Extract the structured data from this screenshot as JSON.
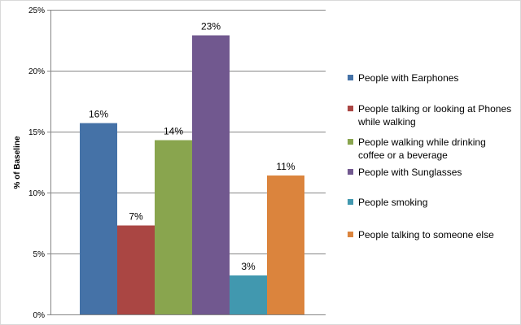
{
  "chart_data": {
    "type": "bar",
    "title": "",
    "xlabel": "",
    "ylabel": "% of Baseline",
    "ylim": [
      0,
      25
    ],
    "yticks": [
      0,
      5,
      10,
      15,
      20,
      25
    ],
    "ytick_suffix": "%",
    "grid": "horizontal",
    "legend_position": "right",
    "categories": [
      "People with Earphones",
      "People talking or looking at Phones while walking",
      "People walking while drinking coffee or a beverage",
      "People with Sunglasses",
      "People smoking",
      "People talking to someone else"
    ],
    "legend_lines": [
      [
        "People with Earphones"
      ],
      [
        "People talking or looking at Phones",
        "while walking"
      ],
      [
        "People walking while drinking",
        "coffee or a beverage"
      ],
      [
        "People with Sunglasses"
      ],
      [
        "People smoking"
      ],
      [
        "People talking to someone else"
      ]
    ],
    "values": [
      15.7,
      7.3,
      14.3,
      22.9,
      3.2,
      11.4
    ],
    "data_labels": [
      "16%",
      "7%",
      "14%",
      "23%",
      "3%",
      "11%"
    ],
    "colors": [
      "#4572A7",
      "#AA4643",
      "#89A54E",
      "#71588F",
      "#4198AF",
      "#DB843D"
    ]
  }
}
